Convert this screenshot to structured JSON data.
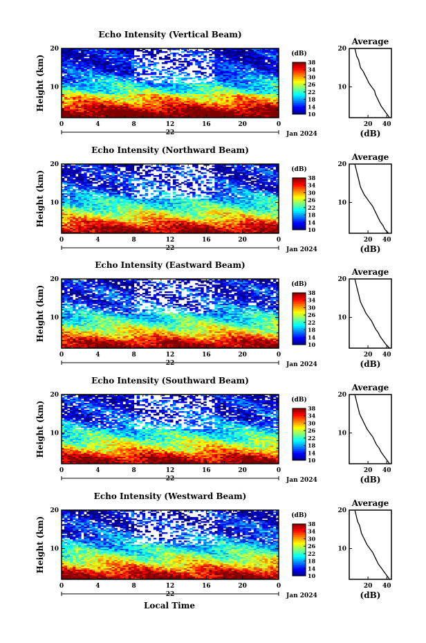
{
  "footer": {
    "xlabel": "Local Time"
  },
  "chart_data": [
    {
      "type": "heatmap",
      "title": "Echo Intensity (Vertical Beam)",
      "xlabel": "",
      "ylabel": "Height (km)",
      "x_ticks": [
        "0",
        "4",
        "8",
        "12",
        "16",
        "20",
        "0"
      ],
      "xlim": [
        0,
        24
      ],
      "ylim": [
        2,
        20
      ],
      "y_ticks": [
        "20",
        "10"
      ],
      "date_label": "22",
      "month_label": "Jan 2024",
      "colorbar": {
        "label": "(dB)",
        "ticks": [
          "38",
          "34",
          "30",
          "26",
          "22",
          "18",
          "14",
          "10"
        ],
        "range": [
          10,
          38
        ]
      },
      "average": {
        "title": "Average",
        "xlabel": "(dB)",
        "x_ticks": [
          "20",
          "40"
        ],
        "y_ticks": [
          "20",
          "10"
        ],
        "xlim": [
          0,
          45
        ],
        "heights": [
          2,
          3,
          4,
          5,
          6,
          7,
          8,
          9,
          10,
          11,
          12,
          13,
          14,
          15,
          16,
          17,
          18,
          19,
          20
        ],
        "values": [
          43,
          40,
          37,
          34,
          32,
          30,
          28,
          27,
          24,
          21,
          19,
          17,
          15,
          12,
          11,
          10,
          8,
          7,
          6
        ]
      }
    },
    {
      "type": "heatmap",
      "title": "Echo Intensity (Northward Beam)",
      "xlabel": "",
      "ylabel": "Height (km)",
      "x_ticks": [
        "0",
        "4",
        "8",
        "12",
        "16",
        "20",
        "0"
      ],
      "xlim": [
        0,
        24
      ],
      "ylim": [
        2,
        20
      ],
      "y_ticks": [
        "20",
        "10"
      ],
      "date_label": "22",
      "month_label": "Jan 2024",
      "colorbar": {
        "label": "(dB)",
        "ticks": [
          "38",
          "34",
          "30",
          "26",
          "22",
          "18",
          "14",
          "10"
        ],
        "range": [
          10,
          38
        ]
      },
      "average": {
        "title": "Average",
        "xlabel": "(dB)",
        "x_ticks": [
          "20",
          "40"
        ],
        "y_ticks": [
          "20",
          "10"
        ],
        "xlim": [
          0,
          45
        ],
        "heights": [
          2,
          3,
          4,
          5,
          6,
          7,
          8,
          9,
          10,
          11,
          12,
          13,
          14,
          15,
          16,
          17,
          18,
          19,
          20
        ],
        "values": [
          42,
          38,
          36,
          33,
          31,
          29,
          27,
          25,
          22,
          19,
          16,
          14,
          12,
          11,
          10,
          9,
          8,
          7,
          6
        ]
      }
    },
    {
      "type": "heatmap",
      "title": "Echo Intensity (Eastward Beam)",
      "xlabel": "",
      "ylabel": "Height (km)",
      "x_ticks": [
        "0",
        "4",
        "8",
        "12",
        "16",
        "20",
        "0"
      ],
      "xlim": [
        0,
        24
      ],
      "ylim": [
        2,
        20
      ],
      "y_ticks": [
        "20",
        "10"
      ],
      "date_label": "22",
      "month_label": "Jan 2024",
      "colorbar": {
        "label": "(dB)",
        "ticks": [
          "38",
          "34",
          "30",
          "26",
          "22",
          "18",
          "14",
          "10"
        ],
        "range": [
          10,
          38
        ]
      },
      "average": {
        "title": "Average",
        "xlabel": "(dB)",
        "x_ticks": [
          "20",
          "40"
        ],
        "y_ticks": [
          "20",
          "10"
        ],
        "xlim": [
          0,
          45
        ],
        "heights": [
          2,
          3,
          4,
          5,
          6,
          7,
          8,
          9,
          10,
          11,
          12,
          13,
          14,
          15,
          16,
          17,
          18,
          19,
          20
        ],
        "values": [
          43,
          39,
          36,
          33,
          31,
          28,
          26,
          24,
          21,
          18,
          16,
          14,
          12,
          11,
          10,
          9,
          8,
          7,
          6
        ]
      }
    },
    {
      "type": "heatmap",
      "title": "Echo Intensity (Southward Beam)",
      "xlabel": "",
      "ylabel": "Height (km)",
      "x_ticks": [
        "0",
        "4",
        "8",
        "12",
        "16",
        "20",
        "0"
      ],
      "xlim": [
        0,
        24
      ],
      "ylim": [
        2,
        20
      ],
      "y_ticks": [
        "20",
        "10"
      ],
      "date_label": "22",
      "month_label": "Jan 2024",
      "colorbar": {
        "label": "(dB)",
        "ticks": [
          "38",
          "34",
          "30",
          "26",
          "22",
          "18",
          "14",
          "10"
        ],
        "range": [
          10,
          38
        ]
      },
      "average": {
        "title": "Average",
        "xlabel": "(dB)",
        "x_ticks": [
          "20",
          "40"
        ],
        "y_ticks": [
          "20",
          "10"
        ],
        "xlim": [
          0,
          45
        ],
        "heights": [
          2,
          3,
          4,
          5,
          6,
          7,
          8,
          9,
          10,
          11,
          12,
          13,
          14,
          15,
          16,
          17,
          18,
          19,
          20
        ],
        "values": [
          43,
          40,
          37,
          34,
          32,
          29,
          27,
          25,
          22,
          19,
          17,
          15,
          13,
          11,
          10,
          9,
          8,
          7,
          6
        ]
      }
    },
    {
      "type": "heatmap",
      "title": "Echo Intensity (Westward Beam)",
      "xlabel": "",
      "ylabel": "Height (km)",
      "x_ticks": [
        "0",
        "4",
        "8",
        "12",
        "16",
        "20",
        "0"
      ],
      "xlim": [
        0,
        24
      ],
      "ylim": [
        2,
        20
      ],
      "y_ticks": [
        "20",
        "10"
      ],
      "date_label": "22",
      "month_label": "Jan 2024",
      "colorbar": {
        "label": "(dB)",
        "ticks": [
          "38",
          "34",
          "30",
          "26",
          "22",
          "18",
          "14",
          "10"
        ],
        "range": [
          10,
          38
        ]
      },
      "average": {
        "title": "Average",
        "xlabel": "(dB)",
        "x_ticks": [
          "20",
          "40"
        ],
        "y_ticks": [
          "20",
          "10"
        ],
        "xlim": [
          0,
          45
        ],
        "heights": [
          2,
          3,
          4,
          5,
          6,
          7,
          8,
          9,
          10,
          11,
          12,
          13,
          14,
          15,
          16,
          17,
          18,
          19,
          20
        ],
        "values": [
          43,
          40,
          37,
          34,
          31,
          29,
          27,
          25,
          22,
          19,
          17,
          15,
          13,
          12,
          11,
          9,
          8,
          7,
          6
        ]
      }
    }
  ]
}
